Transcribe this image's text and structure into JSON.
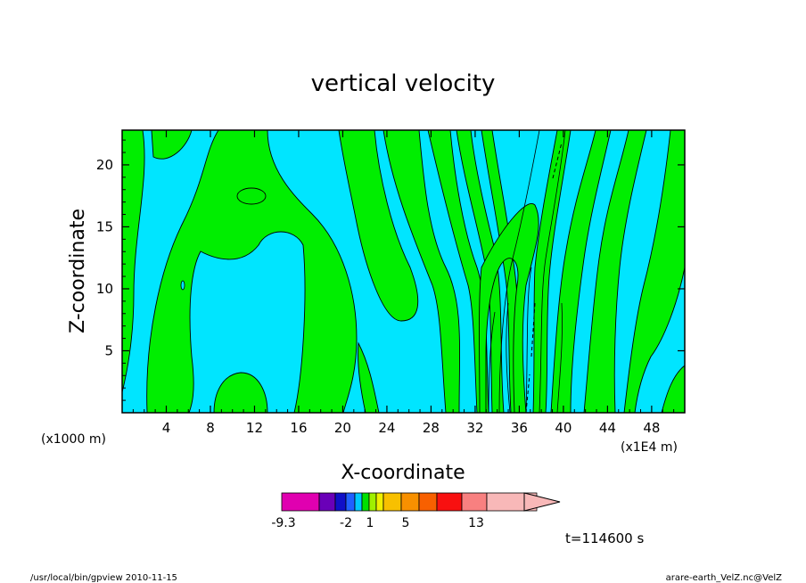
{
  "chart_data": {
    "type": "heatmap",
    "title": "vertical velocity",
    "xlabel": "X-coordinate",
    "ylabel": "Z-coordinate",
    "x_ticks": [
      "4",
      "8",
      "12",
      "16",
      "20",
      "24",
      "28",
      "32",
      "36",
      "40",
      "44",
      "48"
    ],
    "y_ticks": [
      "5",
      "10",
      "15",
      "20"
    ],
    "xlim": [
      0,
      51
    ],
    "ylim": [
      0,
      22.8
    ],
    "x_unit_left": "(x1000 m)",
    "x_unit_right": "(x1E4 m)",
    "fill_colors": {
      "positive": "#00ee00",
      "near_zero": "#00e5ff"
    },
    "colorbar": {
      "labels": [
        "-9.3",
        "-2",
        "1",
        "5",
        "13"
      ],
      "colors": [
        "#e000b0",
        "#6a00b8",
        "#1010c8",
        "#2060ff",
        "#00c8ff",
        "#00e000",
        "#a0f000",
        "#f0f000",
        "#f8c000",
        "#f89000",
        "#f86000",
        "#f81010",
        "#f88080",
        "#f8b8b8"
      ],
      "extend": "right"
    },
    "time_label": "t=114600 s"
  },
  "footer": {
    "left": "/usr/local/bin/gpview   2010-11-15",
    "right": "arare-earth_VelZ.nc@VelZ"
  }
}
